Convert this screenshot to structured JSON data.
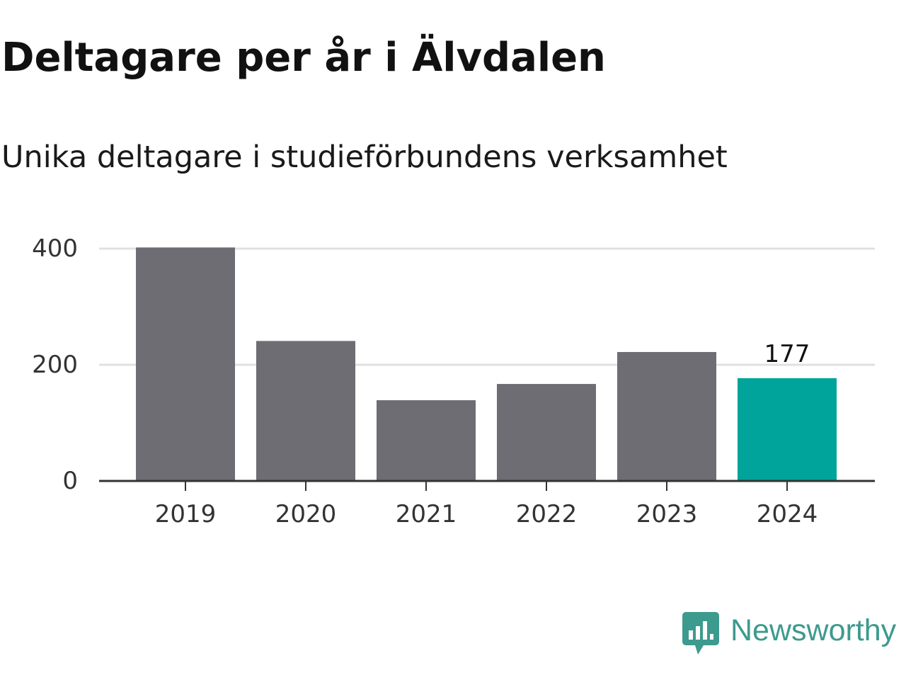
{
  "header": {
    "title": "Deltagare per år i Älvdalen",
    "subtitle": "Unika deltagare i studieförbundens verksamhet"
  },
  "brand": {
    "name": "Newsworthy",
    "color": "#3d9a8e"
  },
  "colors": {
    "bar": "#6e6d73",
    "highlight": "#00a49a",
    "grid": "#e0e0e0",
    "axis": "#333333",
    "tick_text": "#333333"
  },
  "chart_data": {
    "type": "bar",
    "title": "Deltagare per år i Älvdalen",
    "subtitle": "Unika deltagare i studieförbundens verksamhet",
    "categories": [
      "2019",
      "2020",
      "2021",
      "2022",
      "2023",
      "2024"
    ],
    "values": [
      402,
      241,
      139,
      167,
      222,
      177
    ],
    "highlight_index": 5,
    "data_labels": [
      {
        "index": 5,
        "text": "177"
      }
    ],
    "yticks": [
      0,
      200,
      400
    ],
    "ylim": [
      0,
      400
    ],
    "xlabel": "",
    "ylabel": "",
    "grid": "horizontal",
    "legend": "none"
  }
}
